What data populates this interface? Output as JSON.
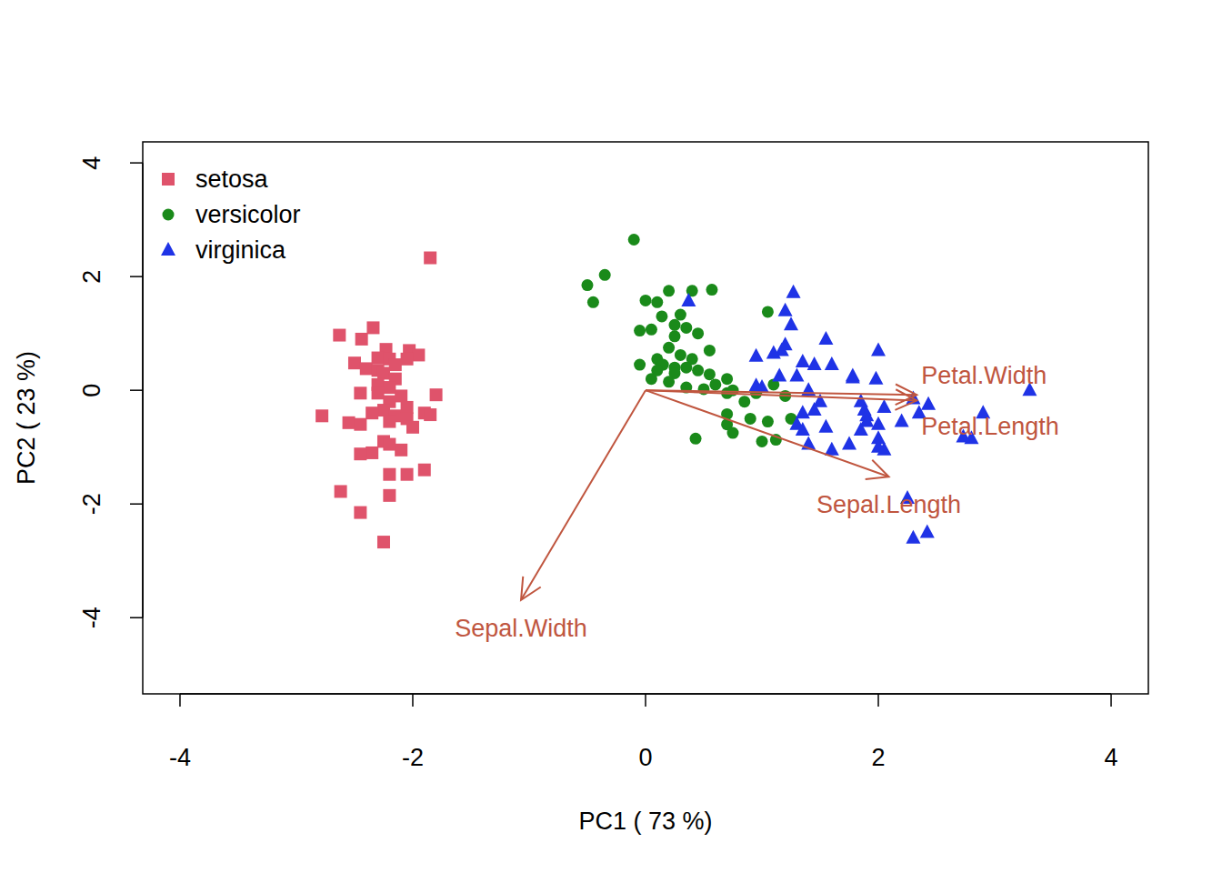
{
  "chart_data": {
    "type": "scatter",
    "x_label": "PC1 ( 73 %)",
    "y_label": "PC2 ( 23 %)",
    "xlim": [
      -4.32,
      4.32
    ],
    "ylim": [
      -5.34,
      4.37
    ],
    "xticks": [
      -4,
      -2,
      0,
      2,
      4
    ],
    "yticks": [
      -4,
      -2,
      0,
      2,
      4
    ],
    "legend": "top-left",
    "series": [
      {
        "name": "setosa",
        "color": "#df536b",
        "marker": "square",
        "x": [
          -1.85,
          -2.63,
          -2.34,
          -2.44,
          -2.23,
          -2.03,
          -1.95,
          -2.5,
          -2.3,
          -2.2,
          -2.4,
          -2.3,
          -2.15,
          -2.05,
          -2.25,
          -2.15,
          -2.3,
          -2.2,
          -2.45,
          -2.3,
          -2.1,
          -1.8,
          -2.2,
          -2.05,
          -2.25,
          -2.35,
          -1.9,
          -1.85,
          -2.15,
          -2.78,
          -2.05,
          -2.2,
          -2.55,
          -2.45,
          -2.0,
          -2.25,
          -2.2,
          -2.1,
          -2.35,
          -2.45,
          -1.9,
          -2.05,
          -2.2,
          -2.62,
          -2.2,
          -2.45,
          -2.25
        ],
        "y": [
          2.33,
          0.97,
          1.1,
          0.9,
          0.72,
          0.7,
          0.62,
          0.48,
          0.57,
          0.55,
          0.38,
          0.35,
          0.45,
          0.55,
          0.3,
          0.2,
          0.1,
          0.05,
          -0.05,
          -0.05,
          -0.1,
          -0.08,
          -0.2,
          -0.3,
          -0.35,
          -0.4,
          -0.4,
          -0.43,
          -0.45,
          -0.45,
          -0.5,
          -0.55,
          -0.57,
          -0.6,
          -0.65,
          -0.9,
          -0.95,
          -1.05,
          -1.1,
          -1.12,
          -1.4,
          -1.48,
          -1.48,
          -1.78,
          -1.85,
          -2.15,
          -2.67
        ]
      },
      {
        "name": "versicolor",
        "color": "#1a8a1a",
        "marker": "circle",
        "x": [
          -0.1,
          -0.5,
          -0.35,
          -0.45,
          0.0,
          0.1,
          0.2,
          0.4,
          0.57,
          0.14,
          0.3,
          0.25,
          0.05,
          -0.05,
          0.35,
          0.45,
          0.55,
          0.25,
          0.2,
          0.3,
          0.4,
          0.1,
          -0.05,
          0.15,
          0.25,
          0.35,
          0.1,
          0.25,
          0.45,
          0.55,
          0.7,
          0.6,
          0.2,
          0.05,
          0.35,
          0.5,
          0.7,
          0.85,
          1.05,
          0.7,
          0.7,
          0.9,
          1.05,
          1.25,
          0.75,
          1.0,
          1.12,
          0.43,
          1.1,
          0.95,
          1.2,
          0.75
        ],
        "y": [
          2.65,
          1.85,
          2.03,
          1.55,
          1.58,
          1.55,
          1.75,
          1.75,
          1.77,
          1.3,
          1.33,
          1.15,
          1.07,
          1.05,
          1.1,
          1.0,
          0.7,
          0.95,
          0.75,
          0.62,
          0.55,
          0.55,
          0.45,
          0.45,
          0.4,
          0.4,
          0.35,
          0.3,
          0.35,
          0.28,
          0.2,
          0.1,
          0.15,
          0.2,
          0.05,
          0.02,
          -0.05,
          -0.2,
          1.38,
          -0.42,
          -0.6,
          -0.5,
          -0.55,
          -0.5,
          -0.75,
          -0.9,
          -0.87,
          -0.85,
          0.1,
          -0.05,
          -0.1,
          0.0
        ]
      },
      {
        "name": "virginica",
        "color": "#1f33e6",
        "marker": "triangle",
        "x": [
          0.37,
          1.27,
          1.2,
          1.25,
          1.17,
          1.2,
          1.55,
          0.95,
          1.1,
          1.35,
          1.45,
          1.6,
          1.78,
          1.98,
          2.0,
          1.78,
          0.95,
          1.0,
          1.15,
          1.3,
          1.4,
          1.5,
          1.85,
          1.88,
          1.9,
          2.05,
          2.3,
          2.43,
          2.8,
          2.73,
          2.9,
          3.3,
          2.35,
          2.2,
          1.9,
          1.85,
          2.0,
          2.0,
          2.0,
          2.05,
          1.75,
          1.55,
          1.35,
          1.4,
          1.6,
          1.35,
          1.3,
          2.25,
          2.3,
          2.42,
          1.45
        ],
        "y": [
          1.57,
          1.72,
          1.4,
          1.15,
          0.7,
          0.8,
          0.9,
          0.6,
          0.65,
          0.5,
          0.45,
          0.45,
          0.25,
          0.2,
          0.7,
          0.22,
          0.08,
          0.05,
          0.25,
          0.25,
          0.0,
          -0.2,
          -0.2,
          -0.35,
          -0.45,
          -0.3,
          -0.15,
          -0.25,
          -0.85,
          -0.82,
          -0.4,
          0.0,
          -0.4,
          -0.55,
          -0.55,
          -0.7,
          -0.6,
          -0.85,
          -1.0,
          -1.05,
          -0.95,
          -0.65,
          -0.7,
          -0.95,
          -1.05,
          -0.4,
          -0.6,
          -1.9,
          -2.6,
          -2.5,
          -0.35
        ]
      }
    ],
    "loadings": [
      {
        "name": "Petal.Width",
        "x": 2.33,
        "y": -0.08
      },
      {
        "name": "Petal.Length",
        "x": 2.33,
        "y": -0.18
      },
      {
        "name": "Sepal.Length",
        "x": 2.09,
        "y": -1.52
      },
      {
        "name": "Sepal.Width",
        "x": -1.07,
        "y": -3.69
      }
    ],
    "loadings_color": "#c0563f"
  }
}
